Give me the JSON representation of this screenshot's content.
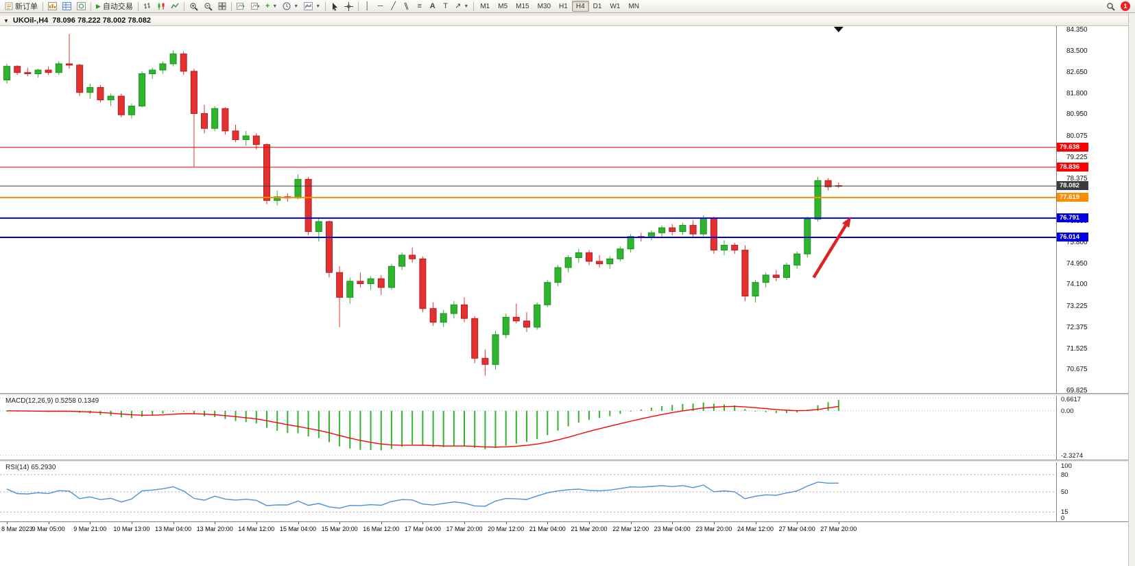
{
  "toolbar": {
    "new_order_label": "新订单",
    "autotrading_label": "自动交易",
    "text_tool_label": "A",
    "label_tool_label": "T",
    "timeframes": [
      "M1",
      "M5",
      "M15",
      "M30",
      "H1",
      "H4",
      "D1",
      "W1",
      "MN"
    ],
    "active_timeframe": "H4",
    "notification_count": "1"
  },
  "chart_header": {
    "symbol_period": "UKOil-,H4",
    "ohlc": "78.096 78.222 78.002 78.082"
  },
  "chart_data": {
    "type": "candlestick",
    "symbol": "UKOil-",
    "timeframe": "H4",
    "current_bar": {
      "open": 78.096,
      "high": 78.222,
      "low": 78.002,
      "close": 78.082
    },
    "colors": {
      "up": "#2eb52e",
      "down": "#e53030",
      "up_border": "#1e8f1e",
      "down_border": "#b22222"
    },
    "y_ticks": [
      84.35,
      83.5,
      82.65,
      81.8,
      80.95,
      80.075,
      79.225,
      78.375,
      77.525,
      76.65,
      75.8,
      74.95,
      74.1,
      73.225,
      72.375,
      71.525,
      70.675,
      69.825
    ],
    "hlines": [
      {
        "price": 79.638,
        "color": "#ff0000",
        "width": 1,
        "label": "79.638"
      },
      {
        "price": 78.836,
        "color": "#ff0000",
        "width": 1,
        "label": "78.836"
      },
      {
        "price": 78.082,
        "color": "#3b3b3b",
        "width": 1,
        "label": "78.082"
      },
      {
        "price": 77.619,
        "color": "#ff8b00",
        "width": 2,
        "label": "77.619"
      },
      {
        "price": 76.791,
        "color": "#0000e0",
        "width": 2,
        "label": "76.791"
      },
      {
        "price": 76.014,
        "color": "#0000e0",
        "width": 2,
        "label": "76.014"
      }
    ],
    "arrow": {
      "from": {
        "i": 77.6,
        "p": 74.4
      },
      "to": {
        "i": 81.2,
        "p": 76.85
      },
      "color": "#dd2222"
    },
    "time_labels": [
      "8 Mar 2023",
      "9 Mar 05:00",
      "9 Mar 21:00",
      "10 Mar 13:00",
      "13 Mar 04:00",
      "13 Mar 20:00",
      "14 Mar 12:00",
      "15 Mar 04:00",
      "15 Mar 20:00",
      "16 Mar 12:00",
      "17 Mar 04:00",
      "17 Mar 20:00",
      "20 Mar 12:00",
      "21 Mar 04:00",
      "21 Mar 20:00",
      "22 Mar 12:00",
      "23 Mar 04:00",
      "23 Mar 20:00",
      "24 Mar 12:00",
      "27 Mar 04:00",
      "27 Mar 20:00"
    ],
    "label_every": 4,
    "candles": [
      [
        82.35,
        83.0,
        82.2,
        82.9
      ],
      [
        82.9,
        82.95,
        82.55,
        82.65
      ],
      [
        82.65,
        82.85,
        82.5,
        82.6
      ],
      [
        82.6,
        82.8,
        82.45,
        82.75
      ],
      [
        82.75,
        82.9,
        82.55,
        82.65
      ],
      [
        82.65,
        83.1,
        82.55,
        83.0
      ],
      [
        83.0,
        84.2,
        82.8,
        82.95
      ],
      [
        82.95,
        83.0,
        81.7,
        81.85
      ],
      [
        81.85,
        82.2,
        81.6,
        82.05
      ],
      [
        82.05,
        82.15,
        81.45,
        81.55
      ],
      [
        81.55,
        81.8,
        81.3,
        81.7
      ],
      [
        81.7,
        81.8,
        80.85,
        80.95
      ],
      [
        80.95,
        81.4,
        80.8,
        81.3
      ],
      [
        81.3,
        82.7,
        81.25,
        82.6
      ],
      [
        82.6,
        82.85,
        82.4,
        82.75
      ],
      [
        82.75,
        83.1,
        82.6,
        83.0
      ],
      [
        83.0,
        83.55,
        82.9,
        83.4
      ],
      [
        83.4,
        83.5,
        82.55,
        82.7
      ],
      [
        82.7,
        82.8,
        78.85,
        81.0
      ],
      [
        81.0,
        81.35,
        80.2,
        80.4
      ],
      [
        80.4,
        81.3,
        80.3,
        81.2
      ],
      [
        81.2,
        81.25,
        80.15,
        80.3
      ],
      [
        80.3,
        80.55,
        79.85,
        79.95
      ],
      [
        79.95,
        80.3,
        79.7,
        80.1
      ],
      [
        80.1,
        80.2,
        79.55,
        79.75
      ],
      [
        79.75,
        79.8,
        77.35,
        77.5
      ],
      [
        77.5,
        77.9,
        77.3,
        77.65
      ],
      [
        77.65,
        77.8,
        77.45,
        77.6
      ],
      [
        77.6,
        78.55,
        77.55,
        78.35
      ],
      [
        78.35,
        78.45,
        76.1,
        76.25
      ],
      [
        76.25,
        76.8,
        75.85,
        76.65
      ],
      [
        76.65,
        76.7,
        74.4,
        74.6
      ],
      [
        74.6,
        74.85,
        72.4,
        73.6
      ],
      [
        73.6,
        74.4,
        73.35,
        74.25
      ],
      [
        74.25,
        74.6,
        74.0,
        74.15
      ],
      [
        74.15,
        74.45,
        73.9,
        74.35
      ],
      [
        74.35,
        74.5,
        73.7,
        74.0
      ],
      [
        74.0,
        74.95,
        73.9,
        74.85
      ],
      [
        74.85,
        75.4,
        74.7,
        75.3
      ],
      [
        75.3,
        75.6,
        75.0,
        75.15
      ],
      [
        75.15,
        75.25,
        73.0,
        73.15
      ],
      [
        73.15,
        73.4,
        72.45,
        72.6
      ],
      [
        72.6,
        73.1,
        72.4,
        72.95
      ],
      [
        72.95,
        73.45,
        72.75,
        73.3
      ],
      [
        73.3,
        73.6,
        72.6,
        72.75
      ],
      [
        72.75,
        72.85,
        70.95,
        71.15
      ],
      [
        71.15,
        71.5,
        70.45,
        70.9
      ],
      [
        70.9,
        72.25,
        70.7,
        72.1
      ],
      [
        72.1,
        72.95,
        71.95,
        72.8
      ],
      [
        72.8,
        73.35,
        72.55,
        72.65
      ],
      [
        72.65,
        73.0,
        72.2,
        72.4
      ],
      [
        72.4,
        73.4,
        72.3,
        73.3
      ],
      [
        73.3,
        74.3,
        73.2,
        74.2
      ],
      [
        74.2,
        74.9,
        74.05,
        74.8
      ],
      [
        74.8,
        75.3,
        74.6,
        75.2
      ],
      [
        75.2,
        75.55,
        75.0,
        75.4
      ],
      [
        75.4,
        75.5,
        74.9,
        75.05
      ],
      [
        75.05,
        75.3,
        74.8,
        74.95
      ],
      [
        74.95,
        75.25,
        74.75,
        75.15
      ],
      [
        75.15,
        75.65,
        75.05,
        75.55
      ],
      [
        75.55,
        76.15,
        75.4,
        76.05
      ],
      [
        76.05,
        76.2,
        75.85,
        76.0
      ],
      [
        76.0,
        76.3,
        75.9,
        76.2
      ],
      [
        76.2,
        76.5,
        76.05,
        76.4
      ],
      [
        76.4,
        76.55,
        76.1,
        76.25
      ],
      [
        76.25,
        76.6,
        76.1,
        76.5
      ],
      [
        76.5,
        76.7,
        76.0,
        76.15
      ],
      [
        76.15,
        76.9,
        76.05,
        76.8
      ],
      [
        76.8,
        76.85,
        75.35,
        75.5
      ],
      [
        75.5,
        75.9,
        75.3,
        75.7
      ],
      [
        75.7,
        75.8,
        75.35,
        75.5
      ],
      [
        75.5,
        75.7,
        73.45,
        73.65
      ],
      [
        73.65,
        74.3,
        73.4,
        74.2
      ],
      [
        74.2,
        74.6,
        74.0,
        74.5
      ],
      [
        74.5,
        74.7,
        74.25,
        74.4
      ],
      [
        74.4,
        75.0,
        74.3,
        74.9
      ],
      [
        74.9,
        75.45,
        74.75,
        75.35
      ],
      [
        75.35,
        76.85,
        75.2,
        76.75
      ],
      [
        76.75,
        78.45,
        76.65,
        78.3
      ],
      [
        78.3,
        78.4,
        77.9,
        78.05
      ],
      [
        78.096,
        78.222,
        78.002,
        78.082
      ]
    ]
  },
  "macd_panel": {
    "label": "MACD(12,26,9) 0.5258 0.1349",
    "hist_color": "#2eb52e",
    "signal_color": "#ff0000",
    "axis": [
      {
        "v": 0.6617,
        "label": "0.6617"
      },
      {
        "v": 0,
        "label": "0.00"
      },
      {
        "v": -2.3274,
        "label": "-2.3274"
      }
    ]
  },
  "rsi_panel": {
    "label": "RSI(14) 65.2930",
    "line_color": "#4a90d9",
    "axis": [
      {
        "v": 100,
        "label": "100"
      },
      {
        "v": 80,
        "label": "80"
      },
      {
        "v": 50,
        "label": "50"
      },
      {
        "v": 15,
        "label": "15"
      },
      {
        "v": 0,
        "label": "0"
      }
    ]
  }
}
